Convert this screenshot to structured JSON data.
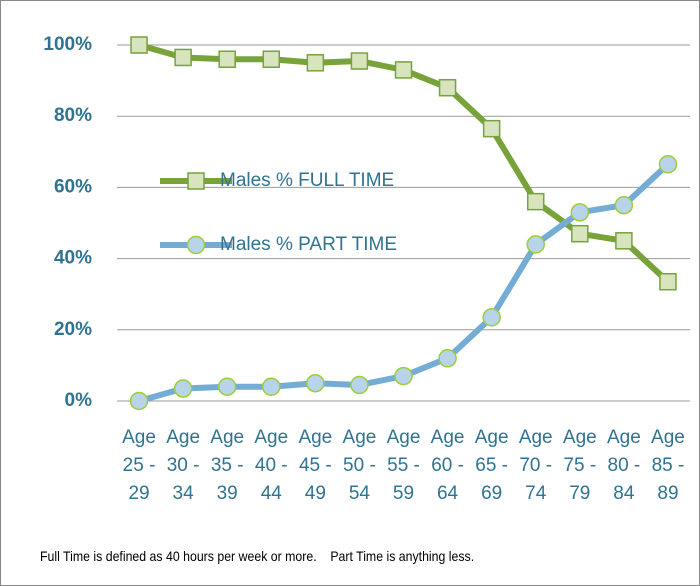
{
  "chart_data": {
    "type": "line",
    "categories": [
      "Age 25 - 29",
      "Age 30 - 34",
      "Age 35 - 39",
      "Age 40 - 44",
      "Age 45 - 49",
      "Age 50 - 54",
      "Age 55 - 59",
      "Age 60 - 64",
      "Age 65 - 69",
      "Age 70 - 74",
      "Age 75 - 79",
      "Age 80 - 84",
      "Age 85 - 89"
    ],
    "series": [
      {
        "name": "Males % FULL TIME",
        "color": "#77a33a",
        "marker": "square",
        "marker_fill": "#d7e4bd",
        "marker_stroke": "#77a33a",
        "values": [
          100,
          96.5,
          96,
          96,
          95,
          95.5,
          93,
          88,
          76.5,
          56,
          47,
          45,
          33.5
        ]
      },
      {
        "name": "Males % PART TIME",
        "color": "#74acd5",
        "marker": "circle",
        "marker_fill": "#b9d3ea",
        "marker_stroke": "#9bcf3a",
        "values": [
          0,
          3.5,
          4,
          4,
          5,
          4.5,
          7,
          12,
          23.5,
          44,
          53,
          55,
          66.5
        ]
      }
    ],
    "ylim": [
      0,
      100
    ],
    "yticks": [
      {
        "value": 0,
        "label": "0%"
      },
      {
        "value": 20,
        "label": "20%"
      },
      {
        "value": 40,
        "label": "40%"
      },
      {
        "value": 60,
        "label": "60%"
      },
      {
        "value": 80,
        "label": "80%"
      },
      {
        "value": 100,
        "label": "100%"
      }
    ],
    "grid": true,
    "legend": "left",
    "note": "Full Time is defined as 40 hours per week or more.    Part Time is anything less."
  }
}
